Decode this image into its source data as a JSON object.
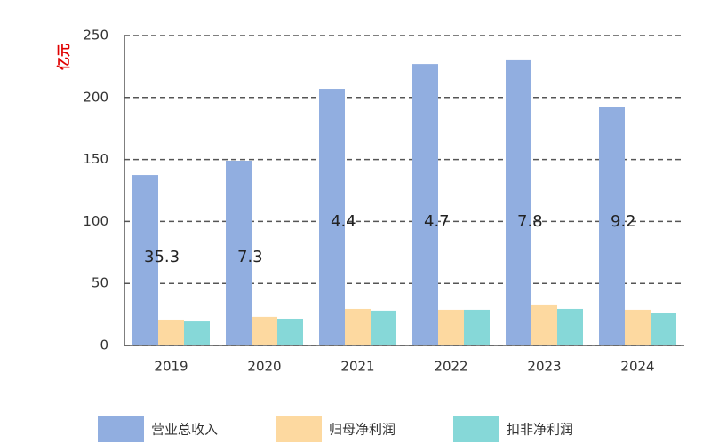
{
  "chart_data": {
    "type": "bar",
    "y_label": "亿元",
    "categories": [
      "2019",
      "2020",
      "2021",
      "2022",
      "2023",
      "2024"
    ],
    "series": [
      {
        "name": "营业总收入",
        "color": "#91aee0",
        "values": [
          137.5,
          149,
          207,
          227,
          230,
          192
        ]
      },
      {
        "name": "归母净利润",
        "color": "#fdd9a0",
        "values": [
          20.8,
          23,
          29.4,
          28.7,
          33,
          28.7
        ]
      },
      {
        "name": "扣非净利润",
        "color": "#86d8d8",
        "values": [
          19.3,
          21.5,
          28,
          28.7,
          29.4,
          25.8
        ]
      }
    ],
    "annotations": [
      "35.3",
      "7.3",
      "4.4",
      "4.7",
      "7.8",
      "9.2"
    ],
    "ylim": [
      0,
      250
    ],
    "yticks": [
      0,
      50,
      100,
      150,
      200,
      250
    ],
    "grid": true
  }
}
